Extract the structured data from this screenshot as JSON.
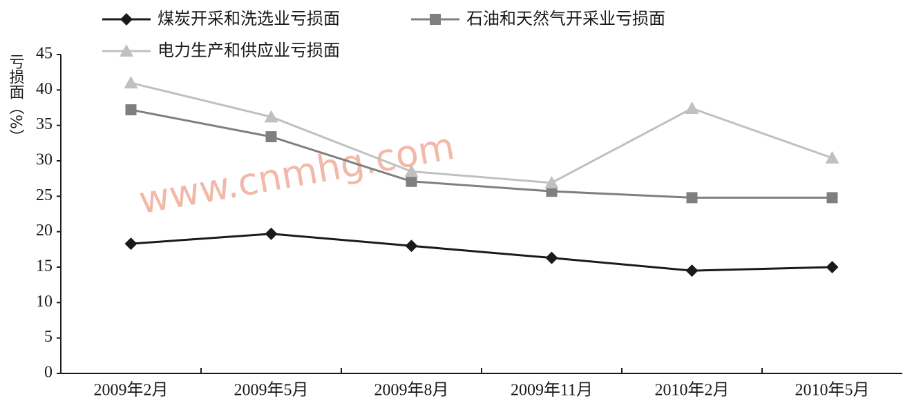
{
  "chart_data": {
    "type": "line",
    "y_label": "亏损面（%）",
    "watermark": "www.cnmhg.com",
    "categories": [
      "2009年2月",
      "2009年5月",
      "2009年8月",
      "2009年11月",
      "2010年2月",
      "2010年5月"
    ],
    "series": [
      {
        "name": "煤炭开采和洗选业亏损面",
        "color": "#1a1a1a",
        "marker": "diamond",
        "values": [
          18.3,
          19.7,
          18.0,
          16.3,
          14.5,
          15.0
        ]
      },
      {
        "name": "石油和天然气开采业亏损面",
        "color": "#7f7f7f",
        "marker": "square",
        "values": [
          37.2,
          33.4,
          27.1,
          25.7,
          24.8,
          24.8
        ]
      },
      {
        "name": "电力生产和供应业亏损面",
        "color": "#c0c0c0",
        "marker": "triangle",
        "values": [
          41.0,
          36.2,
          28.5,
          26.9,
          37.4,
          30.4
        ]
      }
    ],
    "ylim": [
      0,
      45
    ],
    "yticks": [
      0,
      5,
      10,
      15,
      20,
      25,
      30,
      35,
      40,
      45
    ]
  }
}
